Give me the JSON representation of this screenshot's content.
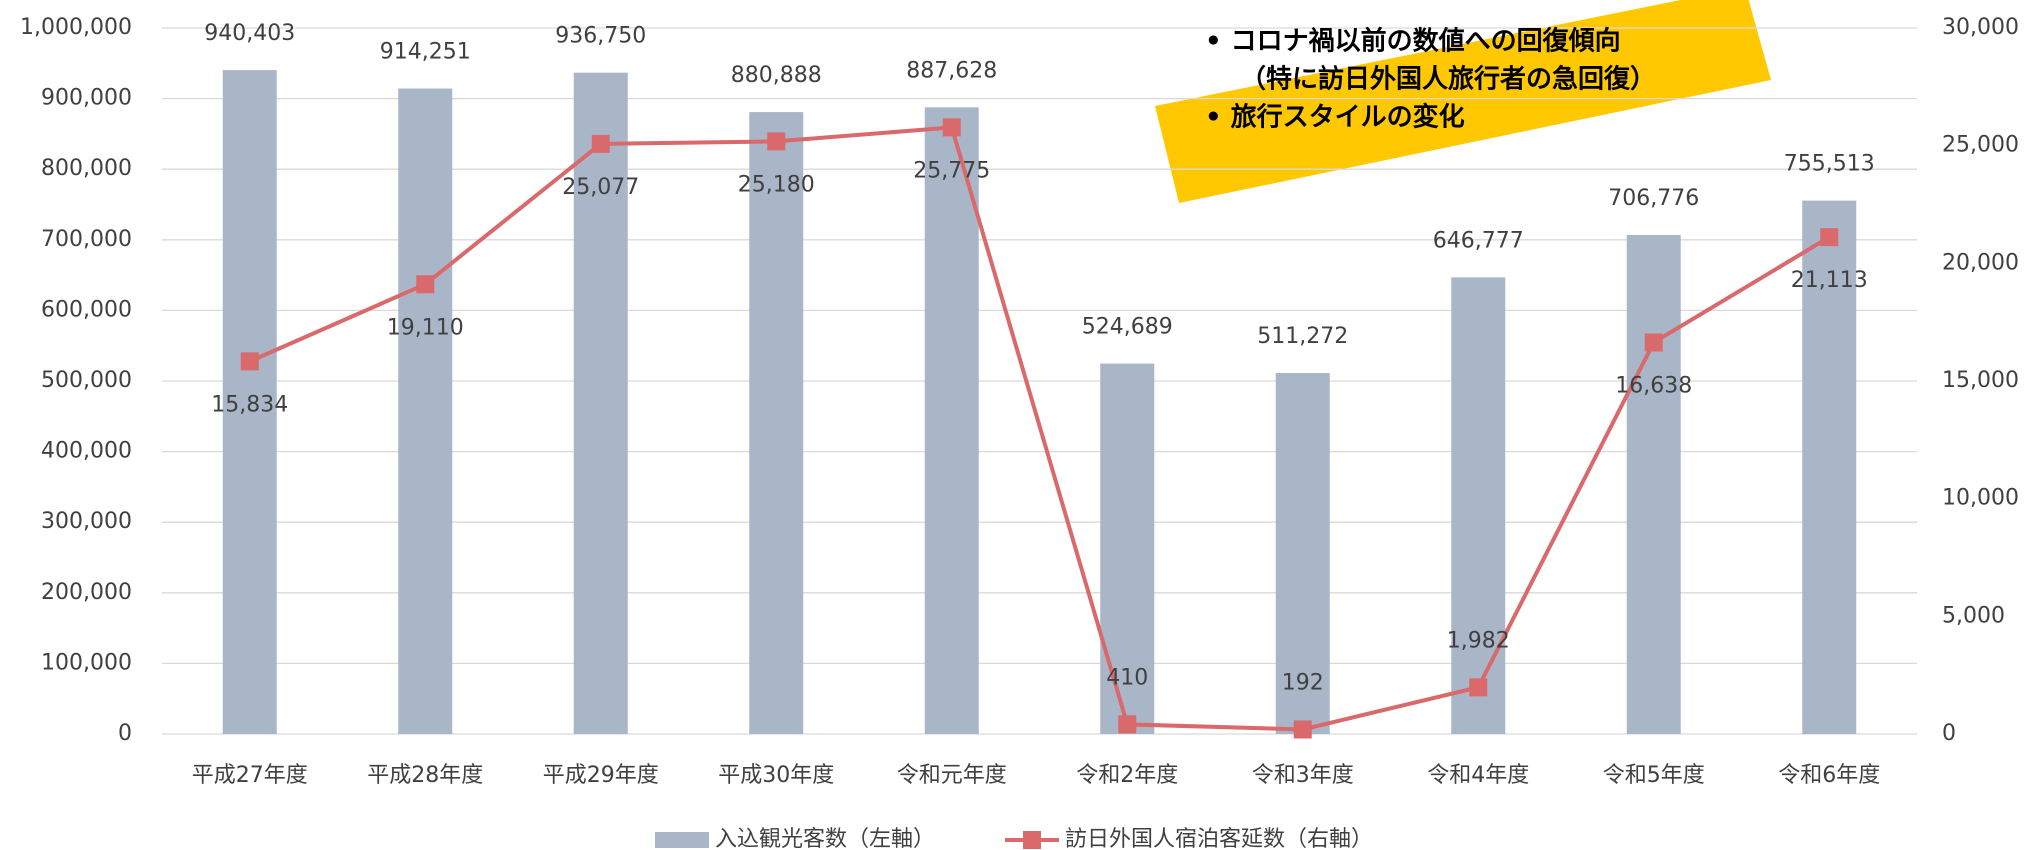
{
  "chart_data": {
    "type": "bar_line",
    "categories": [
      "平成27年度",
      "平成28年度",
      "平成29年度",
      "平成30年度",
      "令和元年度",
      "令和2年度",
      "令和3年度",
      "令和4年度",
      "令和5年度",
      "令和6年度"
    ],
    "series": [
      {
        "name": "入込観光客数（左軸）",
        "color": "#a9b6c8",
        "type": "bar",
        "values": [
          940403,
          914251,
          936750,
          880888,
          887628,
          524689,
          511272,
          646777,
          706776,
          755513
        ],
        "value_labels": [
          "940,403",
          "914,251",
          "936,750",
          "880,888",
          "887,628",
          "524,689",
          "511,272",
          "646,777",
          "706,776",
          "755,513"
        ]
      },
      {
        "name": "訪日外国人宿泊客延数（右軸）",
        "color": "#d9696b",
        "type": "line",
        "axis": "y2",
        "values": [
          15834,
          19110,
          25077,
          25180,
          25775,
          410,
          192,
          1982,
          16638,
          21113
        ],
        "value_labels": [
          "15,834",
          "19,110",
          "25,077",
          "25,180",
          "25,775",
          "410",
          "192",
          "1,982",
          "16,638",
          "21,113"
        ]
      }
    ],
    "ylim": [
      0,
      1000000
    ],
    "yticks": [
      0,
      {
        "value": 100000,
        "label": "100,000"
      },
      {
        "value": 200000,
        "label": "200,000"
      },
      {
        "value": 300000,
        "label": "300,000"
      },
      {
        "value": 400000,
        "label": "400,000"
      },
      {
        "value": 500000,
        "label": "500,000"
      },
      {
        "value": 600000,
        "label": "600,000"
      },
      {
        "value": 700000,
        "label": "700,000"
      },
      {
        "value": 800000,
        "label": "800,000"
      },
      {
        "value": 900000,
        "label": "900,000"
      },
      {
        "value": 1000000,
        "label": "1,000,000"
      }
    ],
    "y2lim": [
      0,
      30000
    ],
    "y2ticks": [
      0,
      {
        "value": 5000,
        "label": "5,000"
      },
      {
        "value": 10000,
        "label": "10,000"
      },
      {
        "value": 15000,
        "label": "15,000"
      },
      {
        "value": 20000,
        "label": "20,000"
      },
      {
        "value": 25000,
        "label": "25,000"
      },
      {
        "value": 30000,
        "label": "30,000"
      }
    ],
    "grid": true,
    "annotations": [
      "• コロナ禍以前の数値への回復傾向",
      "（特に訪日外国人旅行者の急回復）",
      "• 旅行スタイルの変化"
    ]
  }
}
